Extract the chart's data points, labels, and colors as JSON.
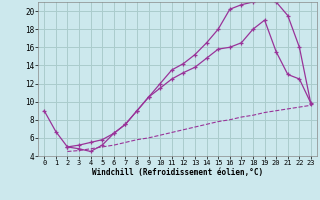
{
  "xlabel": "Windchill (Refroidissement éolien,°C)",
  "bg_color": "#cce8ed",
  "grid_color": "#aacccc",
  "line_color": "#993399",
  "xlim": [
    -0.5,
    23.5
  ],
  "ylim": [
    4,
    21
  ],
  "xticks": [
    0,
    1,
    2,
    3,
    4,
    5,
    6,
    7,
    8,
    9,
    10,
    11,
    12,
    13,
    14,
    15,
    16,
    17,
    18,
    19,
    20,
    21,
    22,
    23
  ],
  "yticks": [
    4,
    6,
    8,
    10,
    12,
    14,
    16,
    18,
    20
  ],
  "line1_x": [
    0,
    1,
    2,
    3,
    4,
    5,
    6,
    7,
    8,
    9,
    10,
    11,
    12,
    13,
    14,
    15,
    16,
    17,
    18,
    19,
    20,
    21,
    22,
    23
  ],
  "line1_y": [
    9.0,
    6.7,
    5.0,
    4.8,
    4.5,
    5.2,
    6.5,
    7.5,
    9.0,
    10.5,
    12.0,
    13.5,
    14.2,
    15.2,
    16.5,
    18.0,
    20.2,
    20.7,
    21.0,
    21.5,
    21.0,
    19.5,
    16.0,
    9.7
  ],
  "line2_x": [
    2,
    3,
    4,
    5,
    6,
    7,
    8,
    9,
    10,
    11,
    12,
    13,
    14,
    15,
    16,
    17,
    18,
    19,
    20,
    21,
    22,
    23
  ],
  "line2_y": [
    4.5,
    4.6,
    4.8,
    5.0,
    5.2,
    5.5,
    5.8,
    6.0,
    6.3,
    6.6,
    6.9,
    7.2,
    7.5,
    7.8,
    8.0,
    8.3,
    8.5,
    8.8,
    9.0,
    9.2,
    9.4,
    9.6
  ],
  "line3_x": [
    2,
    3,
    4,
    5,
    6,
    7,
    8,
    9,
    10,
    11,
    12,
    13,
    14,
    15,
    16,
    17,
    18,
    19,
    20,
    21,
    22,
    23
  ],
  "line3_y": [
    5.0,
    5.2,
    5.5,
    5.8,
    6.5,
    7.5,
    9.0,
    10.5,
    11.5,
    12.5,
    13.2,
    13.8,
    14.8,
    15.8,
    16.0,
    16.5,
    18.0,
    19.0,
    15.5,
    13.0,
    12.5,
    9.8
  ],
  "font_family": "monospace"
}
